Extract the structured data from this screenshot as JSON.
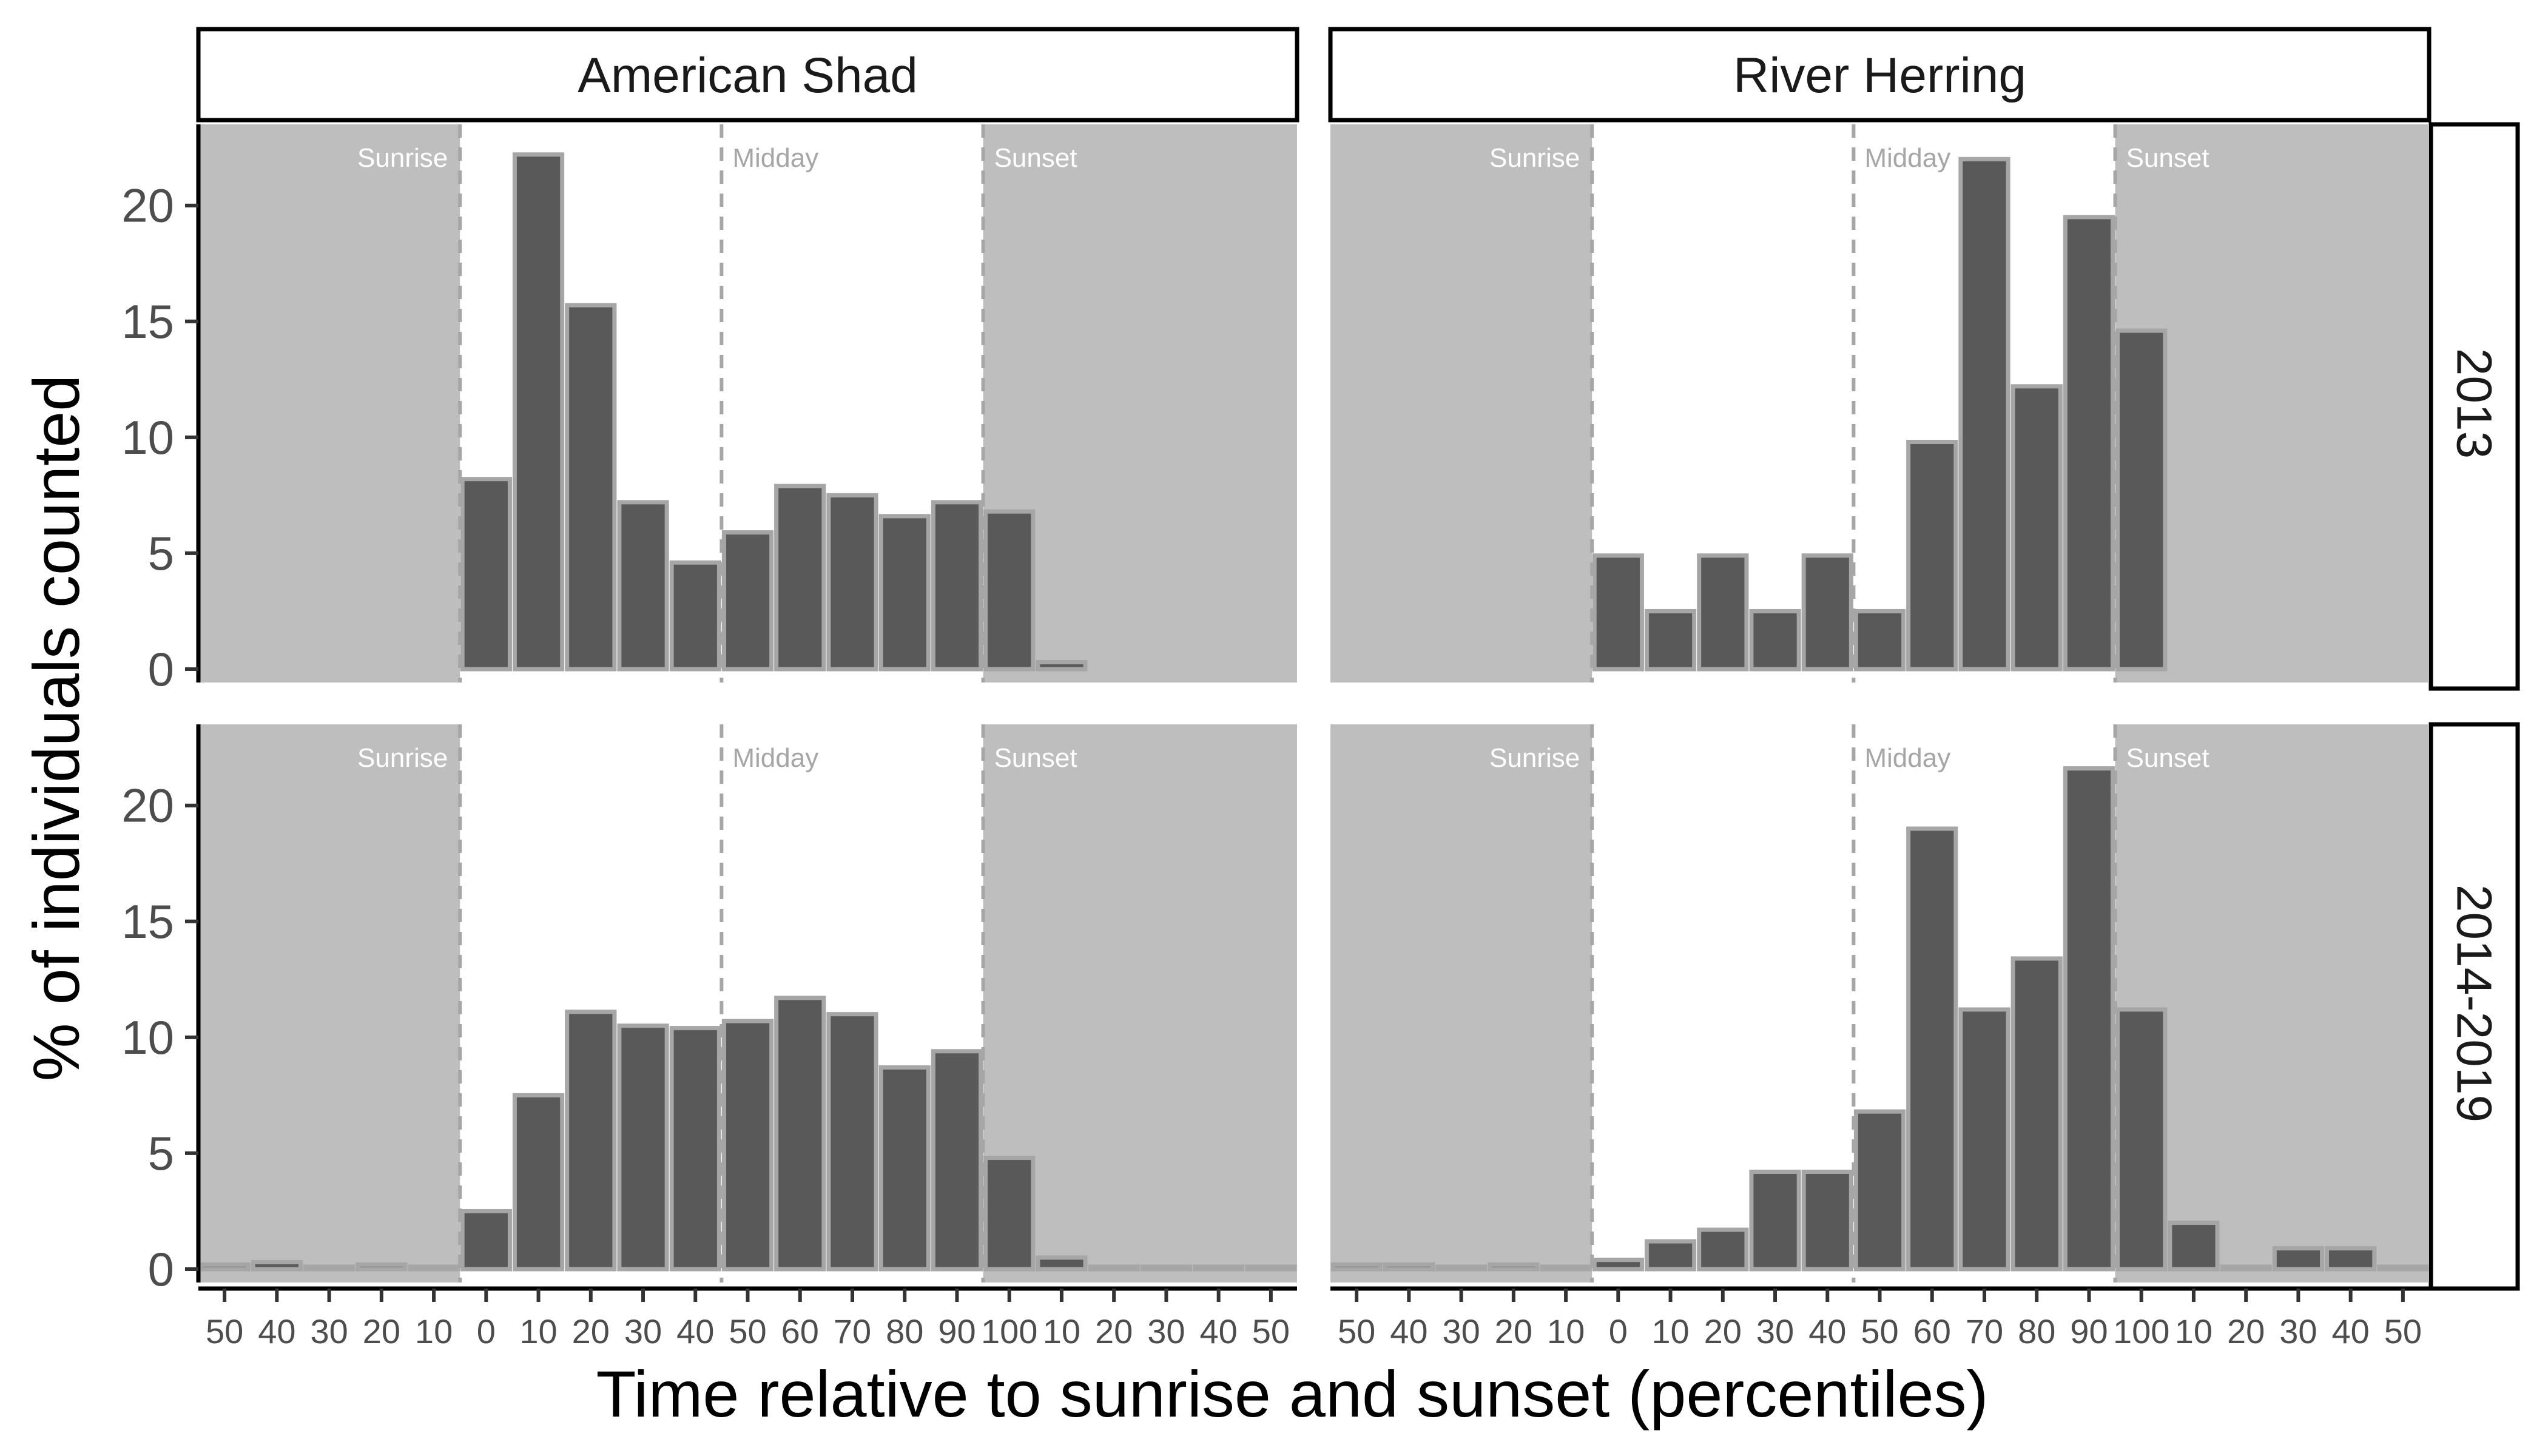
{
  "chart_data": {
    "type": "bar",
    "ylabel": "% of individuals counted",
    "xlabel": "Time relative to sunrise and sunset (percentiles)",
    "ylim": [
      0,
      23.5
    ],
    "yticks": [
      0,
      5,
      10,
      15,
      20
    ],
    "x_tick_labels": [
      "50",
      "40",
      "30",
      "20",
      "10",
      "0",
      "10",
      "20",
      "30",
      "40",
      "50",
      "60",
      "70",
      "80",
      "90",
      "100",
      "10",
      "20",
      "30",
      "40",
      "50"
    ],
    "columns": [
      "American Shad",
      "River Herring"
    ],
    "rows": [
      "2013",
      "2014-2019"
    ],
    "reference_lines": {
      "sunrise": "Sunrise",
      "midday": "Midday",
      "sunset": "Sunset"
    },
    "colors": {
      "bar_fill": "#595959",
      "bar_outline": "#a6a6a6",
      "night_shade": "#bebebe",
      "day_background": "#ffffff",
      "ref_line": "#a6a6a6"
    },
    "panels": [
      {
        "column": "American Shad",
        "row": "2013",
        "values": [
          null,
          null,
          null,
          null,
          null,
          8.2,
          22.2,
          15.7,
          7.2,
          4.6,
          5.9,
          7.9,
          7.5,
          6.6,
          7.2,
          6.8,
          0.3,
          null,
          null,
          null,
          null
        ]
      },
      {
        "column": "River Herring",
        "row": "2013",
        "values": [
          null,
          null,
          null,
          null,
          null,
          4.9,
          2.5,
          4.9,
          2.5,
          4.9,
          2.5,
          9.8,
          22.0,
          12.2,
          19.5,
          14.6,
          null,
          null,
          null,
          null,
          null
        ]
      },
      {
        "column": "American Shad",
        "row": "2014-2019",
        "values": [
          0.2,
          0.3,
          0.1,
          0.2,
          0.1,
          2.5,
          7.5,
          11.1,
          10.5,
          10.4,
          10.7,
          11.7,
          11.0,
          8.7,
          9.4,
          4.8,
          0.5,
          0.1,
          0.1,
          0.05,
          0.0
        ]
      },
      {
        "column": "River Herring",
        "row": "2014-2019",
        "values": [
          0.2,
          0.2,
          0.0,
          0.2,
          0.1,
          0.4,
          1.2,
          1.7,
          4.2,
          4.2,
          6.8,
          19.0,
          11.2,
          13.4,
          21.6,
          11.2,
          2.0,
          0.1,
          0.9,
          0.9,
          0.1
        ]
      }
    ]
  }
}
